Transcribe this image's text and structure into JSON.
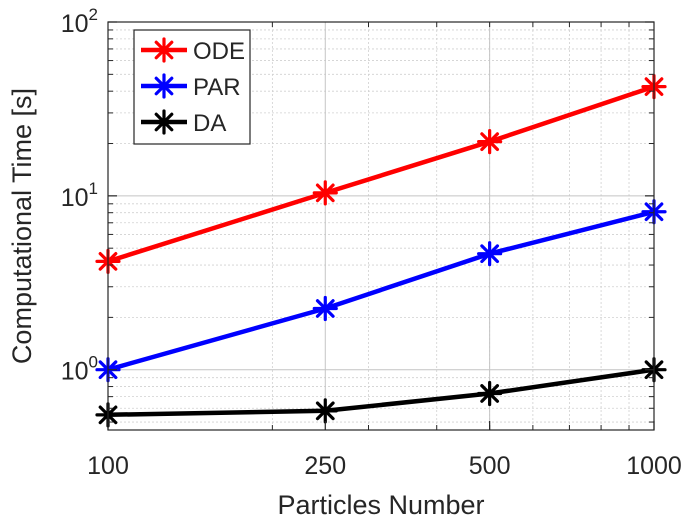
{
  "chart_data": {
    "type": "line",
    "title": "",
    "xlabel": "Particles Number",
    "ylabel": "Computational Time [s]",
    "x": [
      100,
      250,
      500,
      1000
    ],
    "x_scale": "log",
    "y_scale": "log",
    "xlim": [
      100,
      1000
    ],
    "ylim": [
      0.45,
      100
    ],
    "xticks": [
      100,
      250,
      500,
      1000
    ],
    "xtick_labels": [
      "100",
      "250",
      "500",
      "1000"
    ],
    "yticks": [
      {
        "value": 1,
        "base": "10",
        "exp": "0"
      },
      {
        "value": 10,
        "base": "10",
        "exp": "1"
      },
      {
        "value": 100,
        "base": "10",
        "exp": "2"
      }
    ],
    "grid": true,
    "legend_position": "top-left",
    "series": [
      {
        "name": "ODE",
        "color": "#ff0000",
        "values": [
          4.2,
          10.4,
          20.5,
          42.5
        ]
      },
      {
        "name": "PAR",
        "color": "#0000ff",
        "values": [
          1.0,
          2.25,
          4.65,
          8.1
        ]
      },
      {
        "name": "DA",
        "color": "#000000",
        "values": [
          0.55,
          0.58,
          0.73,
          1.0
        ]
      }
    ]
  }
}
